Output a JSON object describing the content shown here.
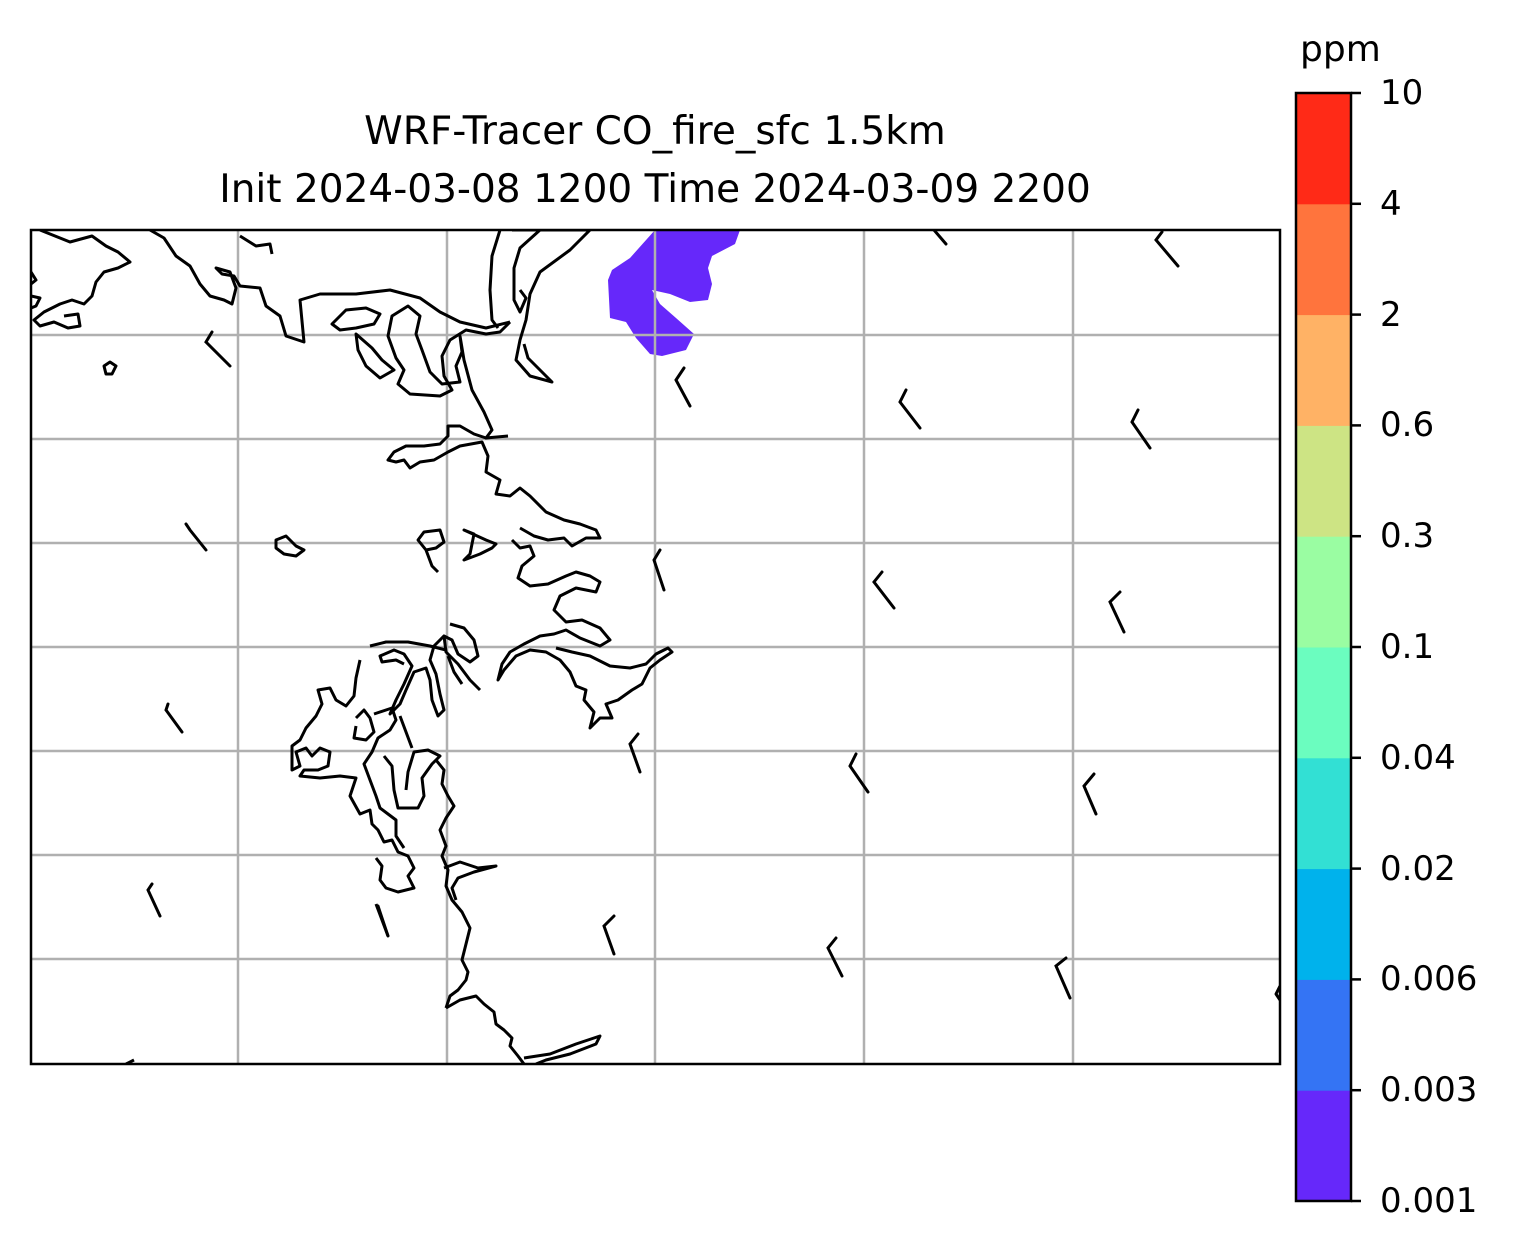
{
  "title": {
    "line1": "WRF-Tracer CO_fire_sfc 1.5km",
    "line2": "Init 2024-03-08 1200 Time 2024-03-09 2200"
  },
  "colorbar": {
    "unit": "ppm",
    "levels": [
      "0.001",
      "0.003",
      "0.006",
      "0.02",
      "0.04",
      "0.1",
      "0.3",
      "0.6",
      "2",
      "4",
      "10"
    ],
    "colors": [
      "#6628fa",
      "#3474f4",
      "#00b2ec",
      "#32e0d4",
      "#6bfdbf",
      "#9afda2",
      "#cde484",
      "#ffb265",
      "#ff743d",
      "#ff2a17"
    ]
  },
  "map": {
    "grid": "on",
    "coastline_color": "#000000",
    "grid_color": "#b0b0b0",
    "plume": {
      "level_range": [
        "0.001",
        "0.003"
      ],
      "color": "#6628fa"
    },
    "wind_barbs": "shown"
  }
}
